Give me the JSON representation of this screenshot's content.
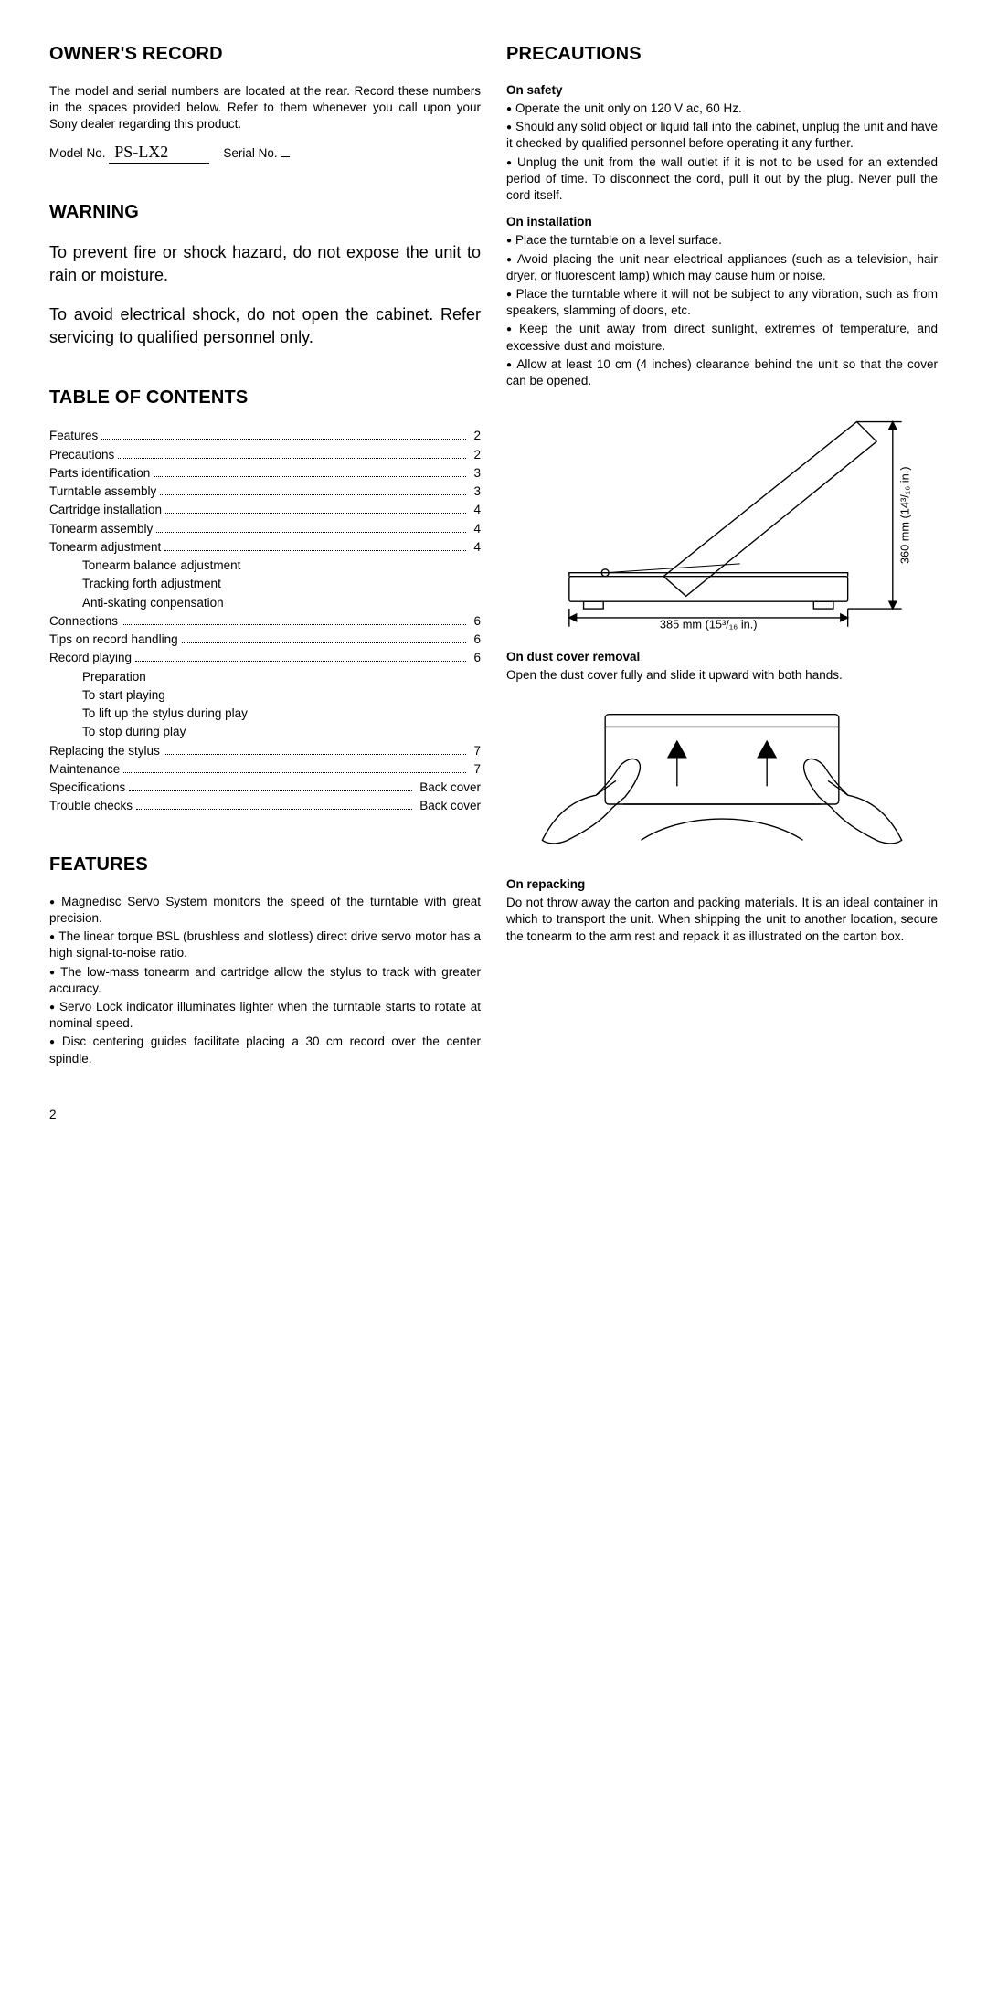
{
  "left": {
    "owners_record": {
      "title": "OWNER'S RECORD",
      "text": "The model and serial numbers are located at the rear.  Record these numbers in the spaces provided below.  Refer to them whenever you call upon your Sony dealer regarding this product.",
      "model_label": "Model No.",
      "model_value": "PS-LX2",
      "serial_label": "Serial No.",
      "serial_value": ""
    },
    "warning": {
      "title": "WARNING",
      "p1": "To prevent fire or shock hazard, do not expose the unit to rain or moisture.",
      "p2": "To avoid electrical shock, do not open the cabinet.  Refer servicing to qualified personnel only."
    },
    "toc": {
      "title": "TABLE OF CONTENTS",
      "rows": [
        {
          "label": "Features",
          "page": "2"
        },
        {
          "label": "Precautions",
          "page": "2"
        },
        {
          "label": "Parts identification",
          "page": "3"
        },
        {
          "label": "Turntable assembly",
          "page": "3"
        },
        {
          "label": "Cartridge installation",
          "page": "4"
        },
        {
          "label": "Tonearm assembly",
          "page": "4"
        },
        {
          "label": "Tonearm adjustment",
          "page": "4"
        }
      ],
      "sub1": [
        "Tonearm balance adjustment",
        "Tracking forth adjustment",
        "Anti-skating conpensation"
      ],
      "rows2": [
        {
          "label": "Connections",
          "page": "6"
        },
        {
          "label": "Tips on record handling",
          "page": "6"
        },
        {
          "label": "Record playing",
          "page": "6"
        }
      ],
      "sub2": [
        "Preparation",
        "To start playing",
        "To lift up the stylus during play",
        "To stop during play"
      ],
      "rows3": [
        {
          "label": "Replacing the stylus",
          "page": "7"
        },
        {
          "label": "Maintenance",
          "page": "7"
        },
        {
          "label": "Specifications",
          "page": "Back cover"
        },
        {
          "label": "Trouble checks",
          "page": "Back cover"
        }
      ]
    },
    "features": {
      "title": "FEATURES",
      "items": [
        "Magnedisc Servo System monitors the speed of the turntable with great precision.",
        "The linear torque BSL (brushless and slotless) direct drive servo motor has a high signal-to-noise ratio.",
        "The low-mass tonearm and cartridge allow the stylus to track with greater accuracy.",
        "Servo Lock indicator illuminates lighter when the turntable starts to rotate at nominal speed.",
        "Disc centering guides facilitate placing a 30 cm record over the center spindle."
      ]
    },
    "pagenum": "2"
  },
  "right": {
    "precautions": {
      "title": "PRECAUTIONS",
      "safety_head": "On safety",
      "safety": [
        "Operate the unit only on 120 V ac, 60 Hz.",
        "Should any solid object or liquid fall into the cabinet, unplug the unit and have it checked by qualified personnel before operating it any further.",
        "Unplug the unit from the wall outlet if it is not to be used for an extended period of time.  To disconnect the cord, pull it out by the plug.  Never pull the cord itself."
      ],
      "install_head": "On installation",
      "install": [
        "Place the turntable on a level surface.",
        "Avoid placing the unit near electrical appliances (such as a television, hair dryer, or fluorescent lamp) which may cause hum or noise.",
        "Place the turntable where it will not be subject to any vibration, such as from speakers, slamming of doors, etc.",
        "Keep the unit away from direct sunlight, extremes of temperature, and excessive dust and moisture.",
        "Allow at least 10 cm (4 inches) clearance behind the unit so that the cover can be opened."
      ],
      "dim_w": "385 mm (15³/₁₆ in.)",
      "dim_h": "360 mm (14³/₁₆ in.)",
      "dust_head": "On dust cover removal",
      "dust_text": "Open the dust cover fully and slide it upward with both hands.",
      "repack_head": "On repacking",
      "repack_text": "Do not throw away the carton and packing materials.  It is an ideal container in which to transport the unit.  When shipping the unit to another location, secure the tonearm to the arm rest and repack it as illustrated on the carton box."
    }
  }
}
